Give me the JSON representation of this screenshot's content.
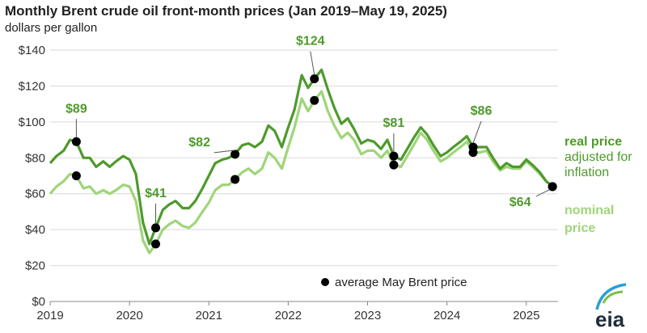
{
  "title": "Monthly Brent crude oil front-month prices (Jan 2019–May 19, 2025)",
  "subtitle": "dollars per gallon",
  "colors": {
    "real": "#4e9a2c",
    "nominal": "#9fd57a",
    "marker": "#000000",
    "grid": "#d9d9d9",
    "callout": "#4e9a2c"
  },
  "chart_data": {
    "type": "line",
    "x_unit": "year",
    "xlim": [
      2019,
      2025.4
    ],
    "ylim": [
      0,
      140
    ],
    "y_ticks": [
      0,
      20,
      40,
      60,
      80,
      100,
      120,
      140
    ],
    "y_tick_labels": [
      "$0",
      "$20",
      "$40",
      "$60",
      "$80",
      "$100",
      "$120",
      "$140"
    ],
    "x_ticks": [
      2019,
      2020,
      2021,
      2022,
      2023,
      2024,
      2025
    ],
    "x_tick_labels": [
      "2019",
      "2020",
      "2021",
      "2022",
      "2023",
      "2024",
      "2025"
    ],
    "grid": true,
    "series": [
      {
        "name": "real price",
        "key": "real",
        "points": [
          [
            2019.0,
            77
          ],
          [
            2019.08,
            81
          ],
          [
            2019.17,
            84
          ],
          [
            2019.25,
            90
          ],
          [
            2019.33,
            89
          ],
          [
            2019.42,
            80
          ],
          [
            2019.5,
            80
          ],
          [
            2019.58,
            75
          ],
          [
            2019.67,
            78
          ],
          [
            2019.75,
            75
          ],
          [
            2019.83,
            78
          ],
          [
            2019.92,
            81
          ],
          [
            2020.0,
            79
          ],
          [
            2020.08,
            71
          ],
          [
            2020.17,
            44
          ],
          [
            2020.25,
            32
          ],
          [
            2020.33,
            41
          ],
          [
            2020.42,
            51
          ],
          [
            2020.5,
            54
          ],
          [
            2020.58,
            56
          ],
          [
            2020.67,
            52
          ],
          [
            2020.75,
            52
          ],
          [
            2020.83,
            56
          ],
          [
            2020.92,
            63
          ],
          [
            2021.0,
            70
          ],
          [
            2021.08,
            77
          ],
          [
            2021.17,
            79
          ],
          [
            2021.25,
            80
          ],
          [
            2021.33,
            82
          ],
          [
            2021.42,
            87
          ],
          [
            2021.5,
            88
          ],
          [
            2021.58,
            86
          ],
          [
            2021.67,
            89
          ],
          [
            2021.75,
            98
          ],
          [
            2021.83,
            95
          ],
          [
            2021.92,
            86
          ],
          [
            2022.0,
            97
          ],
          [
            2022.08,
            107
          ],
          [
            2022.17,
            126
          ],
          [
            2022.25,
            119
          ],
          [
            2022.33,
            124
          ],
          [
            2022.42,
            129
          ],
          [
            2022.5,
            118
          ],
          [
            2022.58,
            108
          ],
          [
            2022.67,
            99
          ],
          [
            2022.75,
            102
          ],
          [
            2022.83,
            96
          ],
          [
            2022.92,
            88
          ],
          [
            2023.0,
            90
          ],
          [
            2023.08,
            89
          ],
          [
            2023.17,
            85
          ],
          [
            2023.25,
            90
          ],
          [
            2023.33,
            81
          ],
          [
            2023.42,
            79
          ],
          [
            2023.5,
            85
          ],
          [
            2023.58,
            91
          ],
          [
            2023.67,
            97
          ],
          [
            2023.75,
            93
          ],
          [
            2023.83,
            87
          ],
          [
            2023.92,
            81
          ],
          [
            2024.0,
            83
          ],
          [
            2024.08,
            86
          ],
          [
            2024.17,
            89
          ],
          [
            2024.25,
            92
          ],
          [
            2024.33,
            86
          ],
          [
            2024.42,
            86
          ],
          [
            2024.5,
            86
          ],
          [
            2024.58,
            80
          ],
          [
            2024.67,
            74
          ],
          [
            2024.75,
            77
          ],
          [
            2024.83,
            75
          ],
          [
            2024.92,
            75
          ],
          [
            2025.0,
            79
          ],
          [
            2025.08,
            76
          ],
          [
            2025.17,
            72
          ],
          [
            2025.25,
            67
          ],
          [
            2025.33,
            64
          ]
        ]
      },
      {
        "name": "nominal price",
        "key": "nominal",
        "points": [
          [
            2019.0,
            60
          ],
          [
            2019.08,
            64
          ],
          [
            2019.17,
            67
          ],
          [
            2019.25,
            71
          ],
          [
            2019.33,
            70
          ],
          [
            2019.42,
            63
          ],
          [
            2019.5,
            64
          ],
          [
            2019.58,
            60
          ],
          [
            2019.67,
            62
          ],
          [
            2019.75,
            60
          ],
          [
            2019.83,
            62
          ],
          [
            2019.92,
            65
          ],
          [
            2020.0,
            64
          ],
          [
            2020.08,
            56
          ],
          [
            2020.17,
            34
          ],
          [
            2020.25,
            27
          ],
          [
            2020.33,
            32
          ],
          [
            2020.42,
            40
          ],
          [
            2020.5,
            43
          ],
          [
            2020.58,
            45
          ],
          [
            2020.67,
            42
          ],
          [
            2020.75,
            41
          ],
          [
            2020.83,
            44
          ],
          [
            2020.92,
            50
          ],
          [
            2021.0,
            55
          ],
          [
            2021.08,
            62
          ],
          [
            2021.17,
            65
          ],
          [
            2021.25,
            65
          ],
          [
            2021.33,
            68
          ],
          [
            2021.42,
            72
          ],
          [
            2021.5,
            74
          ],
          [
            2021.58,
            71
          ],
          [
            2021.67,
            74
          ],
          [
            2021.75,
            83
          ],
          [
            2021.83,
            80
          ],
          [
            2021.92,
            74
          ],
          [
            2022.0,
            86
          ],
          [
            2022.08,
            97
          ],
          [
            2022.17,
            113
          ],
          [
            2022.25,
            106
          ],
          [
            2022.33,
            112
          ],
          [
            2022.42,
            117
          ],
          [
            2022.5,
            106
          ],
          [
            2022.58,
            98
          ],
          [
            2022.67,
            91
          ],
          [
            2022.75,
            94
          ],
          [
            2022.83,
            90
          ],
          [
            2022.92,
            82
          ],
          [
            2023.0,
            84
          ],
          [
            2023.08,
            84
          ],
          [
            2023.17,
            80
          ],
          [
            2023.25,
            84
          ],
          [
            2023.33,
            76
          ],
          [
            2023.42,
            75
          ],
          [
            2023.5,
            81
          ],
          [
            2023.58,
            87
          ],
          [
            2023.67,
            94
          ],
          [
            2023.75,
            90
          ],
          [
            2023.83,
            84
          ],
          [
            2023.92,
            78
          ],
          [
            2024.0,
            80
          ],
          [
            2024.08,
            83
          ],
          [
            2024.17,
            86
          ],
          [
            2024.25,
            89
          ],
          [
            2024.33,
            83
          ],
          [
            2024.42,
            83
          ],
          [
            2024.5,
            84
          ],
          [
            2024.58,
            78
          ],
          [
            2024.67,
            73
          ],
          [
            2024.75,
            75
          ],
          [
            2024.83,
            74
          ],
          [
            2024.92,
            74
          ],
          [
            2025.0,
            78
          ],
          [
            2025.08,
            75
          ],
          [
            2025.17,
            71
          ],
          [
            2025.25,
            67
          ],
          [
            2025.33,
            64
          ]
        ]
      }
    ],
    "may_markers": [
      {
        "x": 2019.33,
        "real": 89,
        "nominal": 70,
        "label": "$89"
      },
      {
        "x": 2020.33,
        "real": 41,
        "nominal": 32,
        "label": "$41"
      },
      {
        "x": 2021.33,
        "real": 82,
        "nominal": 68,
        "label": "$82"
      },
      {
        "x": 2022.33,
        "real": 124,
        "nominal": 112,
        "label": "$124"
      },
      {
        "x": 2023.33,
        "real": 81,
        "nominal": 76,
        "label": "$81"
      },
      {
        "x": 2024.33,
        "real": 86,
        "nominal": 83,
        "label": "$86"
      },
      {
        "x": 2025.33,
        "real": 64,
        "nominal": 64,
        "label": "$64"
      }
    ],
    "side_labels": {
      "real_line1": "real price",
      "real_line2": "adjusted for",
      "real_line3": "inflation",
      "nominal_line1": "nominal",
      "nominal_line2": "price"
    },
    "legend": {
      "marker_label": "average May Brent price",
      "placement": "bottom-center"
    }
  },
  "logo": {
    "text": "eia"
  }
}
